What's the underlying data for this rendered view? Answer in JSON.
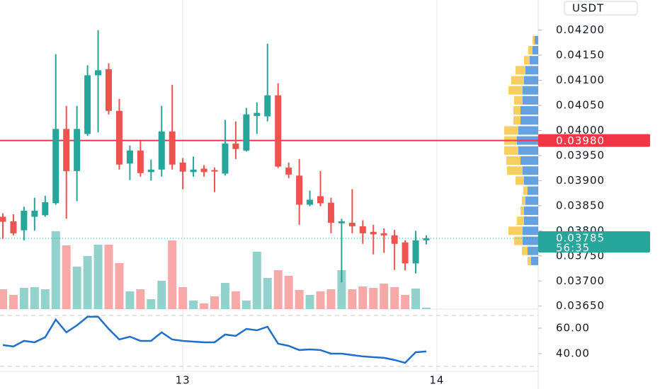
{
  "chart_data": {
    "type": "candlestick",
    "quote_currency": "USDT",
    "up_color": "#26a69a",
    "down_color": "#ef5350",
    "volume_up_color": "#92d2cc",
    "volume_down_color": "#f7a9a7",
    "open": [
      0.03828,
      0.03819,
      0.03801,
      0.03828,
      0.03831,
      0.03855,
      0.04003,
      0.03919,
      0.03993,
      0.0411,
      0.04122,
      0.04039,
      0.03934,
      0.0396,
      0.03917,
      0.03922,
      0.03998,
      0.03936,
      0.03917,
      0.03924,
      0.03921,
      0.03914,
      0.03974,
      0.0396,
      0.04029,
      0.04028,
      0.0407,
      0.03926,
      0.0391,
      0.03852,
      0.03869,
      0.03856,
      0.03815,
      0.03816,
      0.03809,
      0.03798,
      0.03795,
      0.03791,
      0.03777,
      0.03735,
      0.03781
    ],
    "high": [
      0.03835,
      0.03833,
      0.03848,
      0.03866,
      0.0387,
      0.04152,
      0.04049,
      0.04049,
      0.0413,
      0.042,
      0.04134,
      0.04063,
      0.0397,
      0.03979,
      0.03942,
      0.04049,
      0.04091,
      0.03945,
      0.03948,
      0.03931,
      0.03926,
      0.04021,
      0.04018,
      0.04045,
      0.04056,
      0.04173,
      0.04094,
      0.03936,
      0.03943,
      0.0388,
      0.03919,
      0.03866,
      0.03824,
      0.03883,
      0.03821,
      0.03812,
      0.03805,
      0.03802,
      0.03781,
      0.038,
      0.03791
    ],
    "low": [
      0.03784,
      0.03791,
      0.03781,
      0.038,
      0.03828,
      0.03852,
      0.03824,
      0.03859,
      0.03989,
      0.03996,
      0.04032,
      0.03922,
      0.03901,
      0.03908,
      0.039,
      0.03908,
      0.03922,
      0.03883,
      0.03908,
      0.03908,
      0.03877,
      0.0391,
      0.03943,
      0.03958,
      0.03993,
      0.04018,
      0.03925,
      0.03905,
      0.03812,
      0.03849,
      0.03849,
      0.03795,
      0.03697,
      0.03795,
      0.03774,
      0.03753,
      0.03756,
      0.03722,
      0.03721,
      0.03715,
      0.03773
    ],
    "close": [
      0.03818,
      0.03795,
      0.0384,
      0.0384,
      0.03857,
      0.04003,
      0.03919,
      0.04003,
      0.0411,
      0.0412,
      0.04039,
      0.03932,
      0.0396,
      0.03915,
      0.03922,
      0.03998,
      0.03932,
      0.03918,
      0.03922,
      0.03917,
      0.03918,
      0.03974,
      0.03963,
      0.04032,
      0.04035,
      0.0407,
      0.03928,
      0.03912,
      0.03852,
      0.03862,
      0.03855,
      0.03816,
      0.03819,
      0.03809,
      0.03795,
      0.03793,
      0.03791,
      0.03774,
      0.03735,
      0.03781,
      0.03785
    ],
    "volume": [
      28,
      20,
      30,
      31,
      28,
      110,
      90,
      60,
      75,
      91,
      91,
      65,
      25,
      28,
      14,
      40,
      97,
      31,
      12,
      8,
      18,
      37,
      25,
      12,
      81,
      44,
      55,
      47,
      27,
      20,
      25,
      28,
      55,
      28,
      32,
      30,
      36,
      31,
      20,
      29,
      2
    ],
    "ylim": [
      0.03644,
      0.0426
    ],
    "yticks": [
      {
        "value": 0.0365,
        "label": "0.03650"
      },
      {
        "value": 0.037,
        "label": "0.03700"
      },
      {
        "value": 0.0375,
        "label": "0.03750"
      },
      {
        "value": 0.038,
        "label": "0.03800"
      },
      {
        "value": 0.0385,
        "label": "0.03850"
      },
      {
        "value": 0.039,
        "label": "0.03900"
      },
      {
        "value": 0.0395,
        "label": "0.03950"
      },
      {
        "value": 0.04,
        "label": "0.04000"
      },
      {
        "value": 0.0405,
        "label": "0.04050"
      },
      {
        "value": 0.041,
        "label": "0.04100"
      },
      {
        "value": 0.0415,
        "label": "0.04150"
      },
      {
        "value": 0.042,
        "label": "0.04200"
      }
    ],
    "xticks": [
      {
        "value": 17,
        "label": "13"
      },
      {
        "value": 41,
        "label": "14"
      }
    ],
    "horizontal_line": {
      "value": 0.0398,
      "label": "0.03980",
      "color": "#f23645"
    },
    "current_price": {
      "value": 0.03785,
      "countdown": "56:35"
    },
    "volume_profile": {
      "levels": [
        0.0418,
        0.0416,
        0.0414,
        0.0412,
        0.041,
        0.0408,
        0.0406,
        0.0404,
        0.0402,
        0.04,
        0.0398,
        0.0396,
        0.0394,
        0.0392,
        0.039,
        0.0388,
        0.0386,
        0.0384,
        0.0382,
        0.038,
        0.0378,
        0.0376,
        0.0374
      ],
      "up": [
        5,
        8,
        12,
        18,
        20,
        22,
        22,
        25,
        25,
        28,
        30,
        28,
        25,
        22,
        20,
        15,
        18,
        20,
        20,
        22,
        22,
        15,
        10
      ],
      "down": [
        3,
        6,
        8,
        14,
        18,
        20,
        12,
        10,
        10,
        20,
        18,
        20,
        20,
        22,
        12,
        6,
        5,
        5,
        10,
        20,
        12,
        8,
        5
      ],
      "up_color": "#4a8fdb",
      "down_color": "#f7c548"
    },
    "rsi": {
      "color": "#1e6fcc",
      "values": [
        46.7,
        45.6,
        50,
        48.9,
        52.8,
        66.7,
        56.7,
        62.2,
        68.9,
        68.9,
        59.4,
        51.1,
        53.3,
        50,
        50,
        56.7,
        51.1,
        50,
        49.4,
        48.9,
        48.9,
        55,
        53.9,
        59.4,
        58.3,
        61.1,
        47.8,
        46.1,
        42.8,
        43.3,
        42.8,
        40,
        40,
        38.9,
        37.8,
        37.2,
        36.7,
        35,
        32.8,
        41.1,
        41.7
      ],
      "ylim": [
        26.1,
        73.3
      ],
      "yticks": [
        {
          "value": 40,
          "label": "40.00"
        },
        {
          "value": 60,
          "label": "60.00"
        }
      ],
      "bands": [
        30,
        70
      ]
    }
  }
}
